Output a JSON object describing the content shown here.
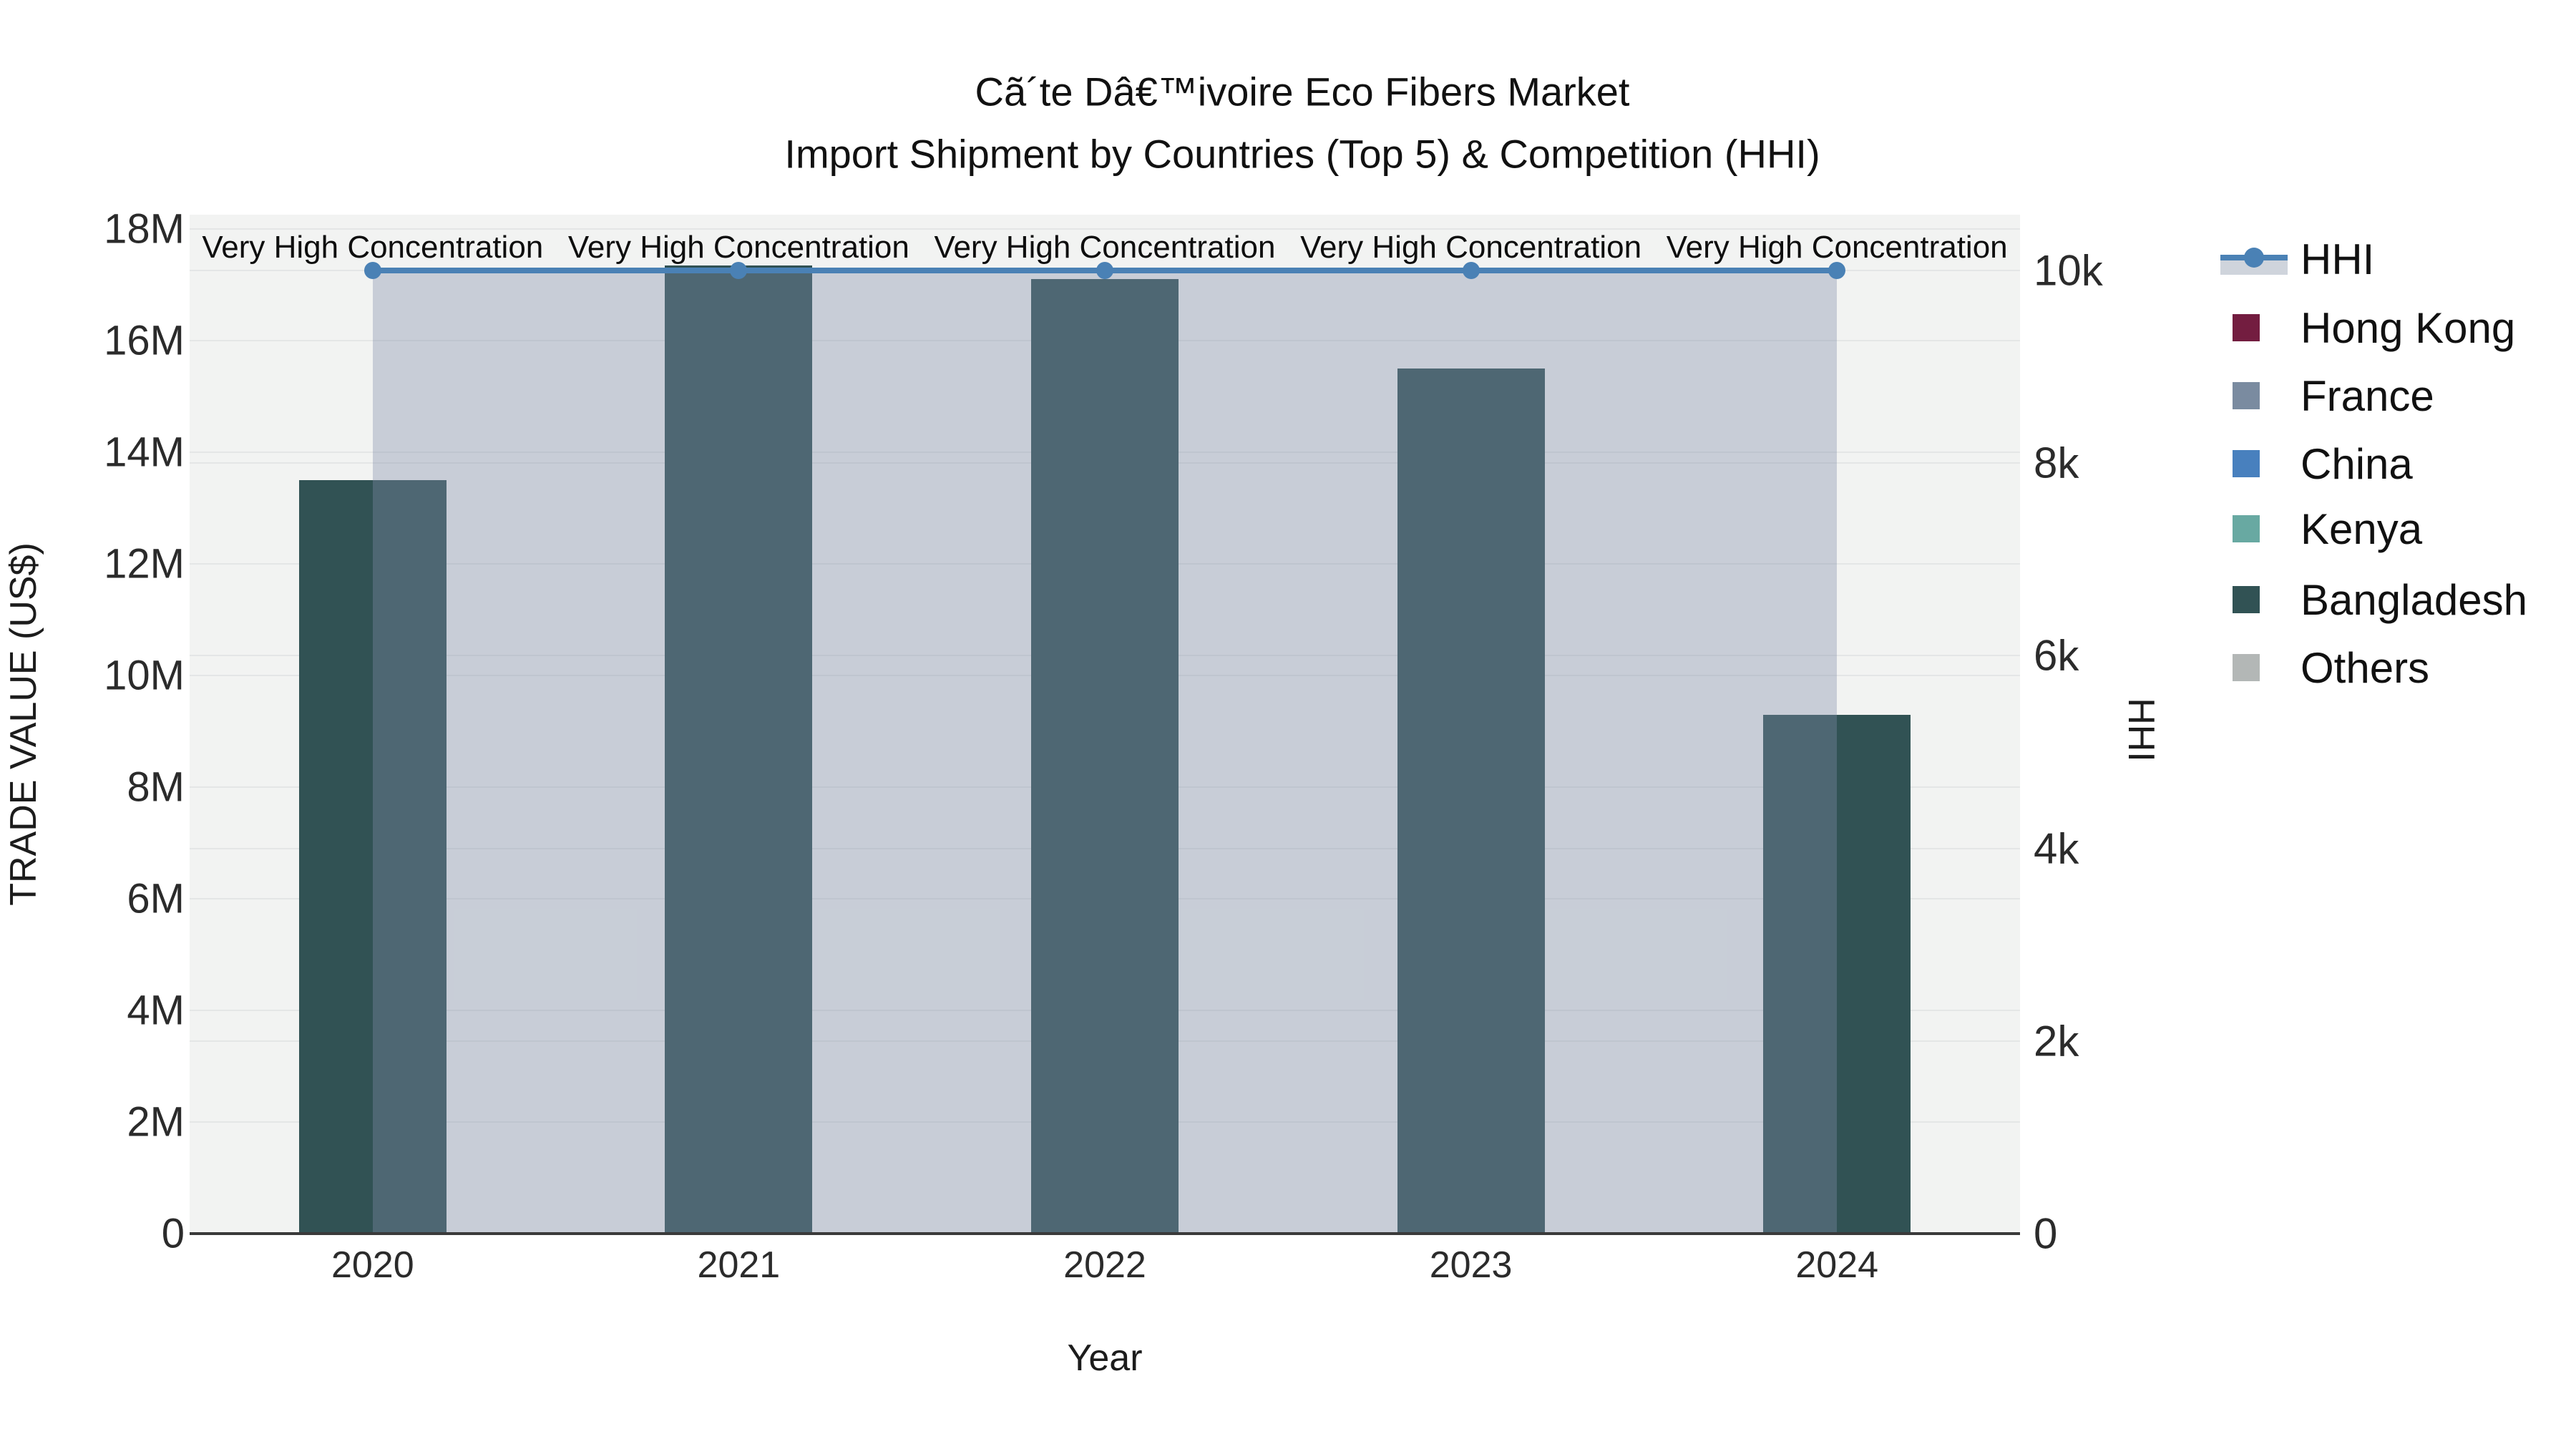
{
  "title": {
    "line1": "Cã´te Dâ€™ivoire Eco Fibers Market",
    "line2": "Import Shipment by Countries (Top 5) & Competition (HHI)"
  },
  "chart_data": {
    "type": "bar+line",
    "x": [
      "2020",
      "2021",
      "2022",
      "2023",
      "2024"
    ],
    "xlabel": "Year",
    "ylabel_left": "TRADE VALUE (US$)",
    "ylabel_right": "HHI",
    "ylim_left": [
      0,
      18000000
    ],
    "ylim_right": [
      0,
      10000
    ],
    "yticks_left": [
      "0",
      "2M",
      "4M",
      "6M",
      "8M",
      "10M",
      "12M",
      "14M",
      "16M",
      "18M"
    ],
    "yticks_right": [
      "0",
      "2k",
      "4k",
      "6k",
      "8k",
      "10k"
    ],
    "grid": true,
    "legend_position": "right-outside",
    "plot_bg": "#f2f3f2",
    "series": [
      {
        "name": "HHI",
        "type": "line",
        "axis": "right",
        "color": "#4a81b5",
        "fill": "rgba(128,142,168,0.37)",
        "values": [
          10000,
          10000,
          10000,
          10000,
          10000
        ]
      },
      {
        "name": "Hong Kong",
        "type": "bar",
        "axis": "left",
        "color": "#731d40",
        "values": [
          0,
          0,
          0,
          0,
          0
        ]
      },
      {
        "name": "France",
        "type": "bar",
        "axis": "left",
        "color": "#7a8ba0",
        "values": [
          0,
          0,
          0,
          0,
          0
        ]
      },
      {
        "name": "China",
        "type": "bar",
        "axis": "left",
        "color": "#4880be",
        "values": [
          0,
          0,
          0,
          0,
          0
        ]
      },
      {
        "name": "Kenya",
        "type": "bar",
        "axis": "left",
        "color": "#68a9a2",
        "values": [
          0,
          0,
          0,
          0,
          0
        ]
      },
      {
        "name": "Bangladesh",
        "type": "bar",
        "axis": "left",
        "color": "#315254",
        "values": [
          13500000,
          17350000,
          17100000,
          15500000,
          9300000
        ]
      },
      {
        "name": "Others",
        "type": "bar",
        "axis": "left",
        "color": "#b3b7b6",
        "values": [
          0,
          0,
          0,
          0,
          0
        ]
      }
    ],
    "annotations": [
      {
        "text": "Very High Concentration",
        "x": "2020"
      },
      {
        "text": "Very High Concentration",
        "x": "2021"
      },
      {
        "text": "Very High Concentration",
        "x": "2022"
      },
      {
        "text": "Very High Concentration",
        "x": "2023"
      },
      {
        "text": "Very High Concentration",
        "x": "2024"
      }
    ]
  }
}
